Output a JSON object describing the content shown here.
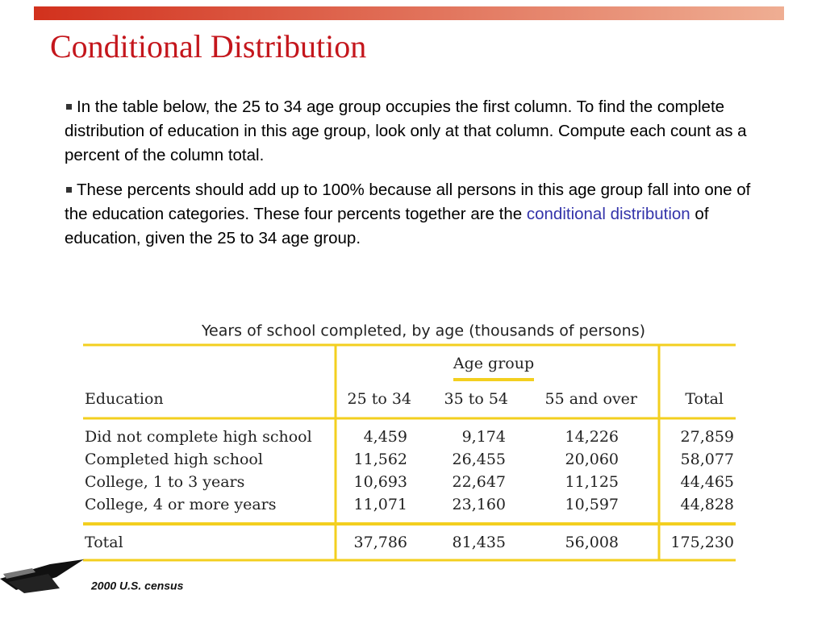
{
  "title": "Conditional Distribution",
  "bullets": [
    {
      "parts": [
        "In the table below, the 25 to 34 age group occupies the first column. To find the complete distribution of education in this age group, look only at that column. Compute each count as a percent of the column total."
      ]
    },
    {
      "parts": [
        "These percents should add up to 100% because all persons in this age group fall into one of the education categories. These four percents together are the ",
        "conditional distribution",
        " of education, given the 25 to 34 age group."
      ]
    }
  ],
  "table": {
    "caption": "Years of school completed, by age (thousands of persons)",
    "group_header": "Age group",
    "columns": [
      "Education",
      "25 to 34",
      "35 to 54",
      "55 and over",
      "Total"
    ],
    "rows": [
      [
        "Did not complete high school",
        "4,459",
        "9,174",
        "14,226",
        "27,859"
      ],
      [
        "Completed high school",
        "11,562",
        "26,455",
        "20,060",
        "58,077"
      ],
      [
        "College, 1 to 3 years",
        "10,693",
        "22,647",
        "11,125",
        "44,465"
      ],
      [
        "College, 4 or more years",
        "11,071",
        "23,160",
        "10,597",
        "44,828"
      ]
    ],
    "total": [
      "Total",
      "37,786",
      "81,435",
      "56,008",
      "175,230"
    ]
  },
  "footnote": "2000 U.S. census"
}
